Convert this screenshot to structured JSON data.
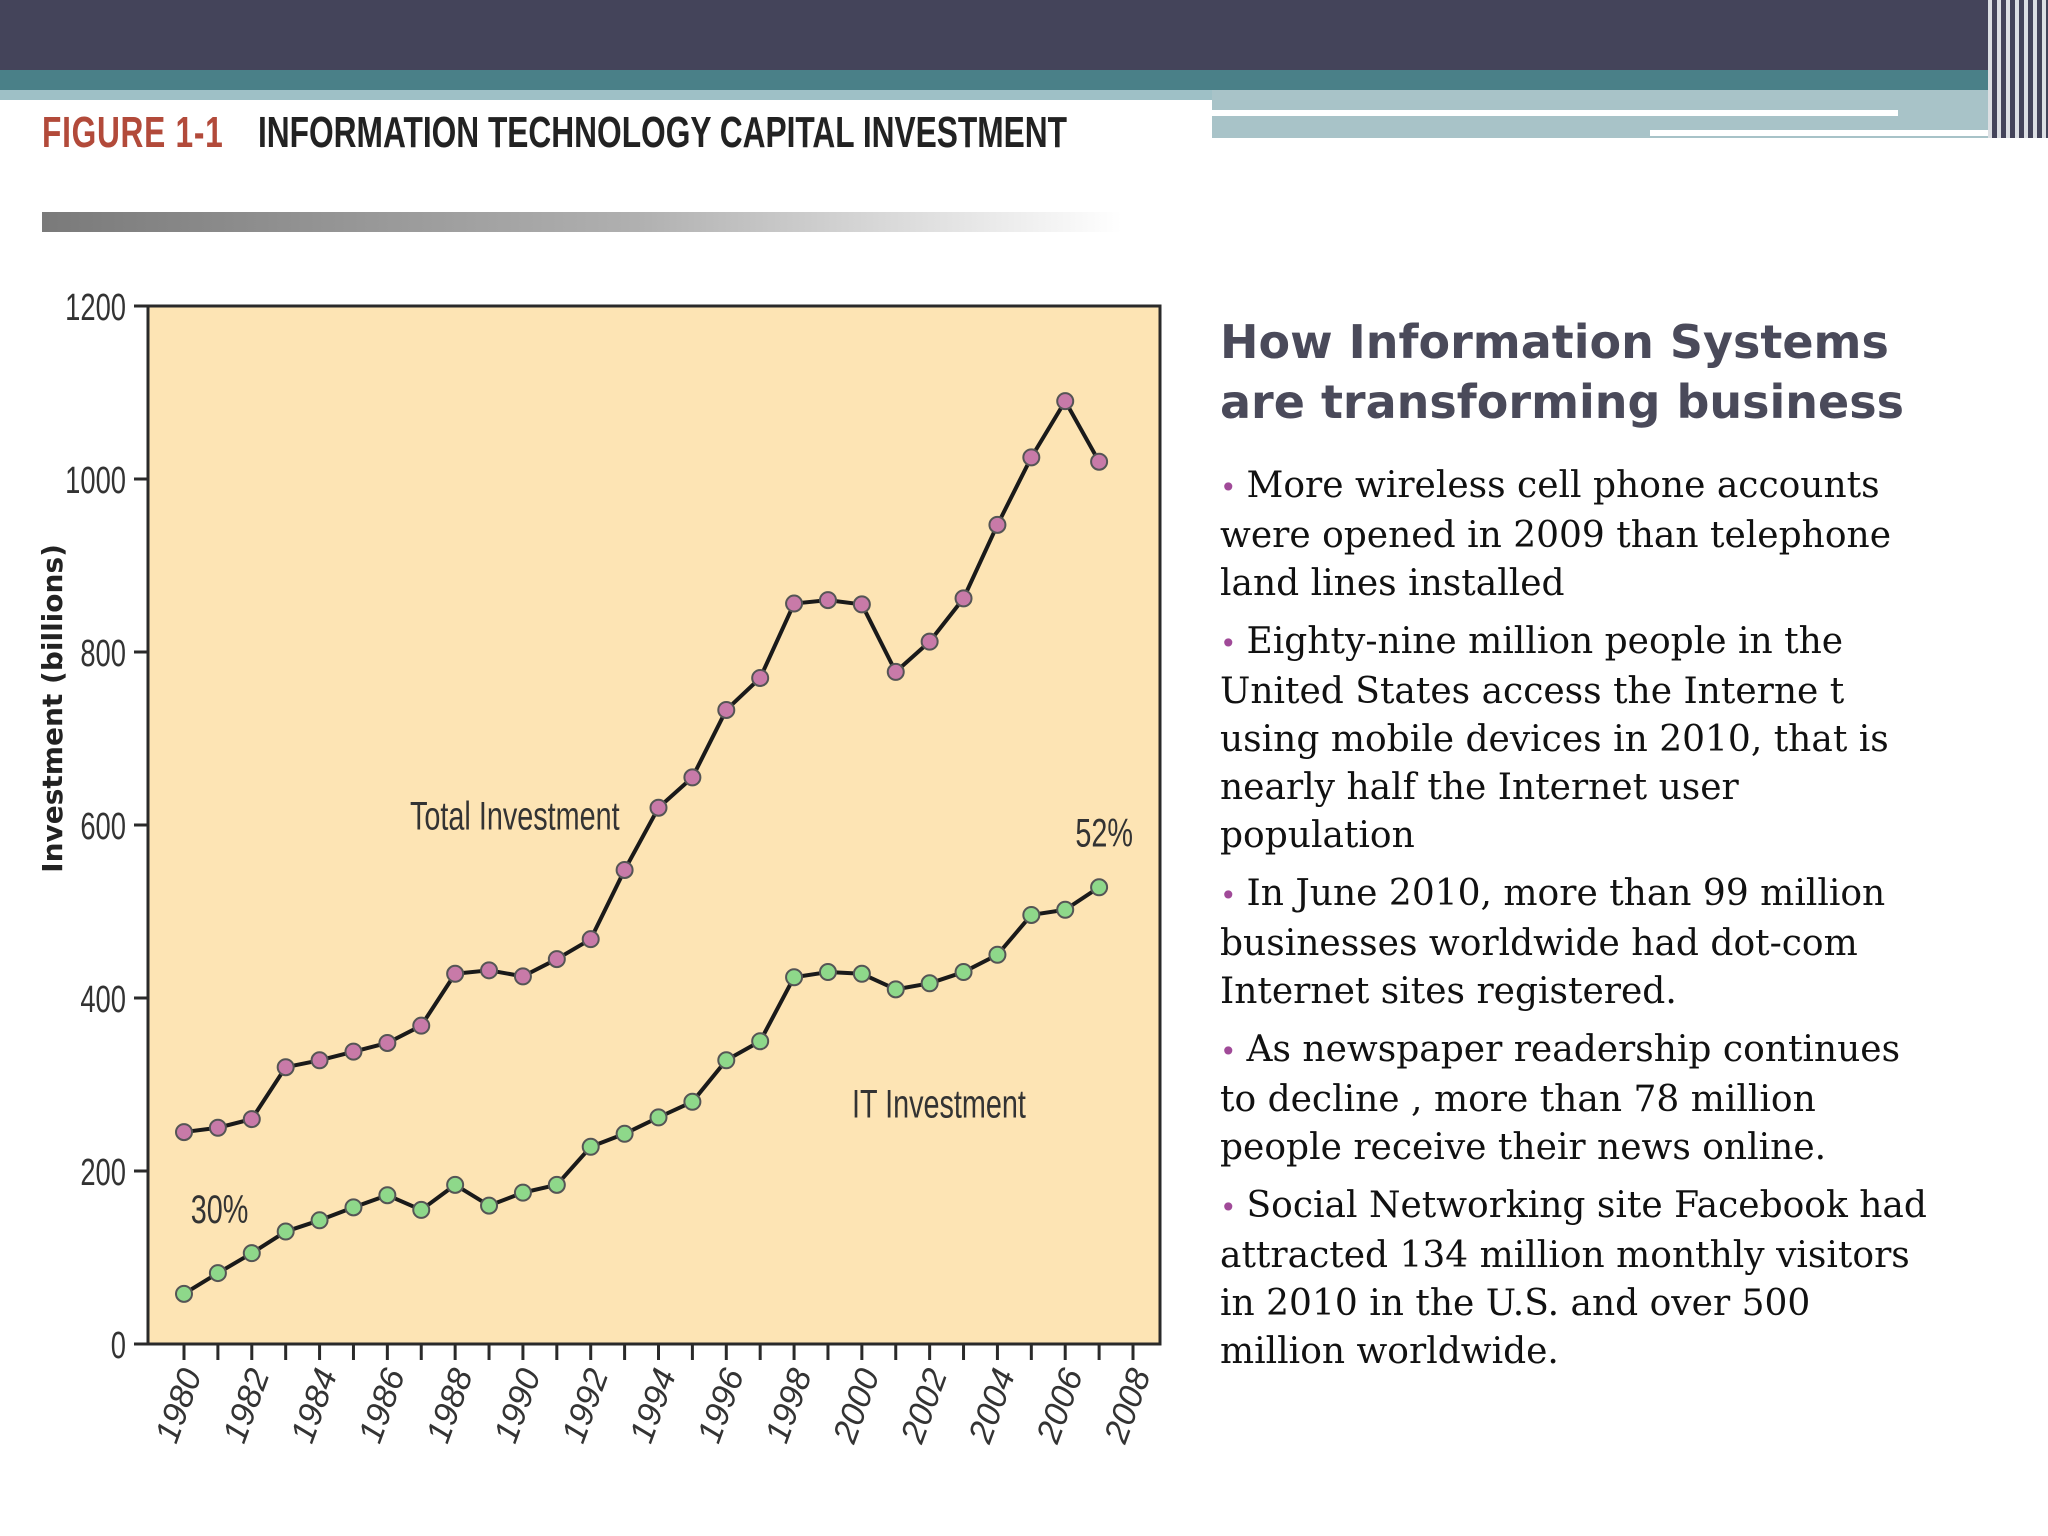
{
  "figure": {
    "label": "FIGURE 1-1",
    "title": "INFORMATION TECHNOLOGY CAPITAL INVESTMENT"
  },
  "side": {
    "heading": "How Information Systems are transforming business",
    "bullets": [
      "More wireless cell phone accounts were opened in 2009 than telephone land lines installed",
      "Eighty-nine million people in the United States access the Interne t using mobile devices in 2010, that is nearly half the Internet user population",
      "In June 2010, more than 99 million businesses worldwide had dot-com Internet sites registered.",
      "As newspaper readership continues to decline , more than 78  million people receive their news online.",
      "Social Networking site  Facebook had attracted 134 million monthly visitors in 2010 in the U.S. and over 500 million worldwide."
    ]
  },
  "colors": {
    "plot_bg": "#fde4b4",
    "total_series": "#c87aa8",
    "it_series": "#8ed88a",
    "line": "#1a1a1a",
    "bullet": "#a04a98"
  },
  "chart_data": {
    "type": "line",
    "title": "",
    "xlabel": "",
    "ylabel": "Investment (billions)",
    "ylim": [
      0,
      1200
    ],
    "xlim": [
      1980,
      2008
    ],
    "yticks": [
      0,
      200,
      400,
      600,
      800,
      1000,
      1200
    ],
    "xticks": [
      1980,
      1982,
      1984,
      1986,
      1988,
      1990,
      1992,
      1994,
      1996,
      1998,
      2000,
      2002,
      2004,
      2006,
      2008
    ],
    "grid": false,
    "series": [
      {
        "name": "Total Investment",
        "x": [
          1980,
          1981,
          1982,
          1983,
          1984,
          1985,
          1986,
          1987,
          1988,
          1989,
          1990,
          1991,
          1992,
          1993,
          1994,
          1995,
          1996,
          1997,
          1998,
          1999,
          2000,
          2001,
          2002,
          2003,
          2004,
          2005,
          2006,
          2007
        ],
        "values": [
          245,
          250,
          260,
          320,
          328,
          338,
          348,
          368,
          428,
          432,
          425,
          445,
          468,
          548,
          620,
          655,
          733,
          770,
          856,
          860,
          855,
          777,
          812,
          862,
          947,
          1025,
          1090,
          1020
        ]
      },
      {
        "name": "IT Investment",
        "x": [
          1980,
          1981,
          1982,
          1983,
          1984,
          1985,
          1986,
          1987,
          1988,
          1989,
          1990,
          1991,
          1992,
          1993,
          1994,
          1995,
          1996,
          1997,
          1998,
          1999,
          2000,
          2001,
          2002,
          2003,
          2004,
          2005,
          2006,
          2007
        ],
        "values": [
          58,
          82,
          105,
          130,
          143,
          158,
          172,
          155,
          184,
          160,
          175,
          184,
          228,
          243,
          262,
          280,
          328,
          350,
          424,
          430,
          428,
          410,
          417,
          430,
          450,
          496,
          502,
          528
        ]
      }
    ],
    "annotations": [
      {
        "text": "30%",
        "x": 1980.2,
        "y": 140
      },
      {
        "text": "52%",
        "x": 2006.3,
        "y": 575
      }
    ]
  }
}
